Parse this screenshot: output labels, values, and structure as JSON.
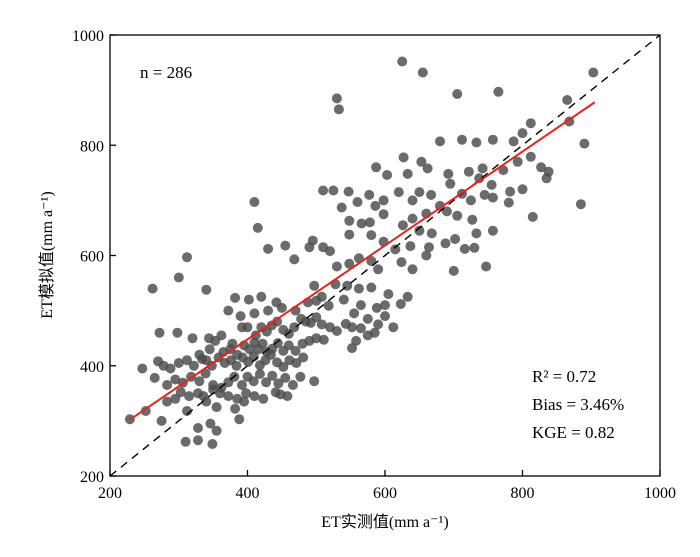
{
  "chart_data": {
    "type": "scatter",
    "title": "",
    "xlabel": "ET实测值(mm a⁻¹)",
    "ylabel": "ET模拟值(mm a⁻¹)",
    "xlim": [
      200,
      1000
    ],
    "ylim": [
      200,
      1000
    ],
    "xticks": [
      200,
      400,
      600,
      800,
      1000
    ],
    "yticks": [
      200,
      400,
      600,
      800,
      1000
    ],
    "xtick_labels": [
      "200",
      "400",
      "600",
      "800",
      "1000"
    ],
    "ytick_labels": [
      "200",
      "400",
      "600",
      "800",
      "1000"
    ],
    "grid": false,
    "legend": "none",
    "colors": {
      "points": "#4a4a4a",
      "fit_line": "#e8231f",
      "one_to_one": "#000000"
    },
    "annotations": {
      "n_label": "n = 286",
      "r2_label": "R² = 0.72",
      "bias_label": "Bias = 3.46%",
      "kge_label": "KGE = 0.82"
    },
    "one_to_one_line": {
      "style": "dashed",
      "from": [
        200,
        200
      ],
      "to": [
        1000,
        1000
      ]
    },
    "fit_line": {
      "from": [
        230,
        303
      ],
      "to": [
        905,
        878
      ]
    },
    "points": [
      [
        625,
        952
      ],
      [
        655,
        932
      ],
      [
        705,
        893
      ],
      [
        765,
        897
      ],
      [
        530,
        885
      ],
      [
        533,
        865
      ],
      [
        903,
        932
      ],
      [
        865,
        882
      ],
      [
        812,
        840
      ],
      [
        868,
        843
      ],
      [
        680,
        807
      ],
      [
        712,
        810
      ],
      [
        733,
        805
      ],
      [
        757,
        810
      ],
      [
        787,
        807
      ],
      [
        800,
        822
      ],
      [
        890,
        803
      ],
      [
        627,
        778
      ],
      [
        653,
        770
      ],
      [
        587,
        760
      ],
      [
        603,
        746
      ],
      [
        633,
        748
      ],
      [
        662,
        758
      ],
      [
        692,
        748
      ],
      [
        722,
        752
      ],
      [
        742,
        758
      ],
      [
        772,
        755
      ],
      [
        793,
        770
      ],
      [
        812,
        779
      ],
      [
        827,
        760
      ],
      [
        838,
        752
      ],
      [
        620,
        715
      ],
      [
        650,
        715
      ],
      [
        667,
        710
      ],
      [
        695,
        730
      ],
      [
        737,
        740
      ],
      [
        755,
        728
      ],
      [
        782,
        716
      ],
      [
        800,
        720
      ],
      [
        835,
        740
      ],
      [
        510,
        718
      ],
      [
        525,
        718
      ],
      [
        547,
        716
      ],
      [
        410,
        697
      ],
      [
        577,
        710
      ],
      [
        598,
        700
      ],
      [
        640,
        700
      ],
      [
        680,
        690
      ],
      [
        712,
        712
      ],
      [
        725,
        700
      ],
      [
        745,
        710
      ],
      [
        757,
        705
      ],
      [
        780,
        696
      ],
      [
        885,
        693
      ],
      [
        537,
        687
      ],
      [
        560,
        697
      ],
      [
        586,
        690
      ],
      [
        598,
        675
      ],
      [
        640,
        667
      ],
      [
        660,
        676
      ],
      [
        690,
        680
      ],
      [
        705,
        672
      ],
      [
        727,
        665
      ],
      [
        815,
        670
      ],
      [
        548,
        663
      ],
      [
        566,
        658
      ],
      [
        578,
        660
      ],
      [
        626,
        655
      ],
      [
        650,
        645
      ],
      [
        668,
        640
      ],
      [
        702,
        630
      ],
      [
        733,
        640
      ],
      [
        757,
        645
      ],
      [
        495,
        627
      ],
      [
        490,
        615
      ],
      [
        510,
        615
      ],
      [
        548,
        638
      ],
      [
        580,
        637
      ],
      [
        598,
        625
      ],
      [
        615,
        611
      ],
      [
        637,
        617
      ],
      [
        664,
        615
      ],
      [
        688,
        622
      ],
      [
        716,
        612
      ],
      [
        730,
        614
      ],
      [
        415,
        650
      ],
      [
        430,
        612
      ],
      [
        455,
        618
      ],
      [
        468,
        593
      ],
      [
        312,
        597
      ],
      [
        300,
        560
      ],
      [
        340,
        538
      ],
      [
        262,
        540
      ],
      [
        520,
        608
      ],
      [
        530,
        580
      ],
      [
        548,
        585
      ],
      [
        562,
        595
      ],
      [
        580,
        590
      ],
      [
        590,
        575
      ],
      [
        624,
        588
      ],
      [
        660,
        600
      ],
      [
        640,
        575
      ],
      [
        700,
        572
      ],
      [
        747,
        580
      ],
      [
        382,
        523
      ],
      [
        402,
        520
      ],
      [
        420,
        525
      ],
      [
        442,
        515
      ],
      [
        497,
        545
      ],
      [
        508,
        525
      ],
      [
        528,
        548
      ],
      [
        545,
        545
      ],
      [
        562,
        540
      ],
      [
        580,
        542
      ],
      [
        605,
        530
      ],
      [
        633,
        525
      ],
      [
        600,
        510
      ],
      [
        623,
        512
      ],
      [
        372,
        500
      ],
      [
        390,
        490
      ],
      [
        410,
        495
      ],
      [
        430,
        500
      ],
      [
        450,
        505
      ],
      [
        470,
        500
      ],
      [
        488,
        515
      ],
      [
        500,
        518
      ],
      [
        518,
        509
      ],
      [
        540,
        520
      ],
      [
        565,
        510
      ],
      [
        588,
        505
      ],
      [
        555,
        495
      ],
      [
        575,
        485
      ],
      [
        590,
        475
      ],
      [
        600,
        490
      ],
      [
        612,
        470
      ],
      [
        272,
        460
      ],
      [
        298,
        460
      ],
      [
        320,
        450
      ],
      [
        344,
        450
      ],
      [
        362,
        455
      ],
      [
        378,
        440
      ],
      [
        392,
        470
      ],
      [
        400,
        470
      ],
      [
        412,
        455
      ],
      [
        420,
        470
      ],
      [
        428,
        462
      ],
      [
        435,
        473
      ],
      [
        443,
        480
      ],
      [
        452,
        465
      ],
      [
        460,
        458
      ],
      [
        468,
        470
      ],
      [
        478,
        485
      ],
      [
        485,
        480
      ],
      [
        492,
        478
      ],
      [
        500,
        488
      ],
      [
        508,
        475
      ],
      [
        520,
        470
      ],
      [
        530,
        463
      ],
      [
        543,
        476
      ],
      [
        552,
        470
      ],
      [
        565,
        468
      ],
      [
        575,
        455
      ],
      [
        585,
        460
      ],
      [
        558,
        445
      ],
      [
        552,
        432
      ],
      [
        334,
        412
      ],
      [
        345,
        430
      ],
      [
        353,
        445
      ],
      [
        365,
        425
      ],
      [
        375,
        430
      ],
      [
        385,
        420
      ],
      [
        395,
        437
      ],
      [
        403,
        430
      ],
      [
        410,
        442
      ],
      [
        416,
        430
      ],
      [
        422,
        440
      ],
      [
        428,
        425
      ],
      [
        436,
        431
      ],
      [
        444,
        441
      ],
      [
        452,
        427
      ],
      [
        460,
        437
      ],
      [
        470,
        427
      ],
      [
        480,
        440
      ],
      [
        490,
        445
      ],
      [
        500,
        450
      ],
      [
        511,
        447
      ],
      [
        278,
        400
      ],
      [
        288,
        395
      ],
      [
        300,
        405
      ],
      [
        312,
        410
      ],
      [
        322,
        400
      ],
      [
        330,
        420
      ],
      [
        340,
        410
      ],
      [
        348,
        400
      ],
      [
        358,
        415
      ],
      [
        367,
        405
      ],
      [
        376,
        410
      ],
      [
        384,
        400
      ],
      [
        393,
        415
      ],
      [
        401,
        407
      ],
      [
        409,
        417
      ],
      [
        418,
        401
      ],
      [
        426,
        410
      ],
      [
        434,
        420
      ],
      [
        443,
        406
      ],
      [
        452,
        398
      ],
      [
        461,
        410
      ],
      [
        471,
        405
      ],
      [
        481,
        415
      ],
      [
        247,
        395
      ],
      [
        270,
        408
      ],
      [
        265,
        378
      ],
      [
        283,
        365
      ],
      [
        295,
        375
      ],
      [
        306,
        369
      ],
      [
        318,
        380
      ],
      [
        330,
        372
      ],
      [
        339,
        386
      ],
      [
        350,
        365
      ],
      [
        362,
        360
      ],
      [
        372,
        370
      ],
      [
        381,
        380
      ],
      [
        392,
        365
      ],
      [
        400,
        380
      ],
      [
        409,
        372
      ],
      [
        418,
        385
      ],
      [
        427,
        370
      ],
      [
        436,
        382
      ],
      [
        445,
        368
      ],
      [
        455,
        378
      ],
      [
        466,
        365
      ],
      [
        477,
        380
      ],
      [
        497,
        372
      ],
      [
        283,
        335
      ],
      [
        295,
        340
      ],
      [
        303,
        352
      ],
      [
        315,
        345
      ],
      [
        328,
        350
      ],
      [
        340,
        335
      ],
      [
        350,
        357
      ],
      [
        360,
        350
      ],
      [
        372,
        345
      ],
      [
        385,
        340
      ],
      [
        398,
        350
      ],
      [
        410,
        345
      ],
      [
        423,
        340
      ],
      [
        441,
        352
      ],
      [
        458,
        345
      ],
      [
        355,
        325
      ],
      [
        382,
        322
      ],
      [
        395,
        335
      ],
      [
        312,
        318
      ],
      [
        252,
        318
      ],
      [
        275,
        300
      ],
      [
        229,
        303
      ],
      [
        328,
        287
      ],
      [
        346,
        295
      ],
      [
        310,
        262
      ],
      [
        328,
        265
      ],
      [
        349,
        258
      ],
      [
        355,
        282
      ],
      [
        388,
        303
      ],
      [
        336,
        345
      ],
      [
        448,
        348
      ]
    ]
  }
}
